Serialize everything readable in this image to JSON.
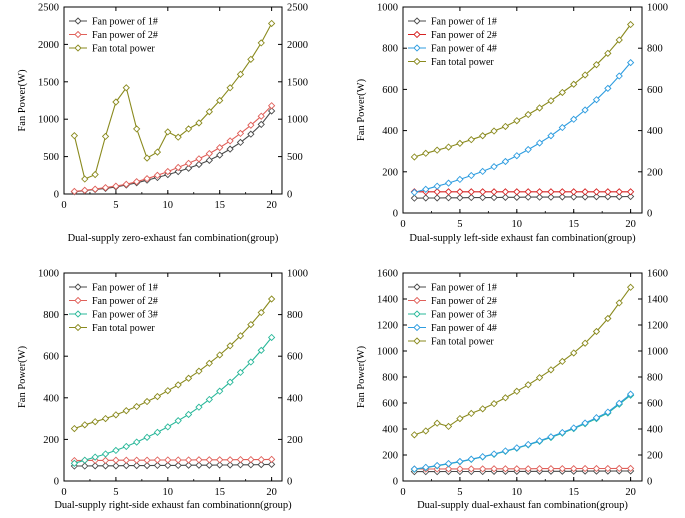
{
  "chart_data": [
    {
      "type": "line",
      "xlabel": "Dual-supply zero-exhaust fan combination(group)",
      "ylabel": "Fan Power(W)",
      "xlim": [
        0,
        21
      ],
      "ylim": [
        0,
        2500
      ],
      "xticks": [
        "0",
        "5",
        "10",
        "15",
        "20"
      ],
      "yticks": [
        "0",
        "500",
        "1000",
        "1500",
        "2000",
        "2500"
      ],
      "right_yticks": [
        "0",
        "500",
        "1000",
        "1500",
        "2000",
        "2500"
      ],
      "legend_position": "top-left",
      "x": [
        1,
        2,
        3,
        4,
        5,
        6,
        7,
        8,
        9,
        10,
        11,
        12,
        13,
        14,
        15,
        16,
        17,
        18,
        19,
        20
      ],
      "series": [
        {
          "name": "Fan power of 1#",
          "color": "#4a4a4a",
          "values": [
            30,
            45,
            60,
            75,
            95,
            120,
            150,
            185,
            220,
            260,
            300,
            345,
            395,
            450,
            520,
            600,
            690,
            800,
            930,
            1110
          ]
        },
        {
          "name": "Fan power of 2#",
          "color": "#e0605a",
          "values": [
            35,
            50,
            65,
            85,
            105,
            130,
            165,
            205,
            250,
            300,
            355,
            410,
            470,
            540,
            620,
            710,
            810,
            920,
            1040,
            1180
          ]
        },
        {
          "name": "Fan total power",
          "color": "#8a8a1e",
          "values": [
            780,
            200,
            260,
            770,
            1230,
            1420,
            870,
            480,
            560,
            830,
            760,
            870,
            950,
            1100,
            1250,
            1420,
            1600,
            1800,
            2020,
            2280
          ]
        }
      ]
    },
    {
      "type": "line",
      "xlabel": "Dual-supply left-side exhaust fan combination(group)",
      "ylabel": "Fan Power(W)",
      "xlim": [
        0,
        21
      ],
      "ylim": [
        0,
        1000
      ],
      "xticks": [
        "0",
        "5",
        "10",
        "15",
        "20"
      ],
      "yticks": [
        "0",
        "200",
        "400",
        "600",
        "800",
        "1000"
      ],
      "right_yticks": [
        "0",
        "200",
        "400",
        "600",
        "800",
        "1000"
      ],
      "legend_position": "top-left",
      "x": [
        1,
        2,
        3,
        4,
        5,
        6,
        7,
        8,
        9,
        10,
        11,
        12,
        13,
        14,
        15,
        16,
        17,
        18,
        19,
        20
      ],
      "series": [
        {
          "name": "Fan power of 1#",
          "color": "#4a4a4a",
          "values": [
            72,
            73,
            73,
            74,
            74,
            75,
            75,
            75,
            76,
            76,
            77,
            77,
            77,
            78,
            78,
            78,
            79,
            79,
            79,
            80
          ]
        },
        {
          "name": "Fan power of 2#",
          "color": "#d62222",
          "values": [
            103,
            103,
            103,
            103,
            103,
            103,
            103,
            103,
            103,
            103,
            103,
            103,
            103,
            103,
            103,
            103,
            103,
            103,
            103,
            103
          ]
        },
        {
          "name": "Fan power of 4#",
          "color": "#2f9de0",
          "values": [
            100,
            115,
            130,
            145,
            163,
            182,
            202,
            225,
            250,
            278,
            308,
            340,
            375,
            415,
            455,
            500,
            550,
            605,
            665,
            730
          ]
        },
        {
          "name": "Fan total power",
          "color": "#8a8a1e",
          "values": [
            272,
            290,
            305,
            320,
            338,
            356,
            375,
            398,
            420,
            448,
            478,
            510,
            545,
            585,
            625,
            670,
            720,
            775,
            840,
            915
          ]
        }
      ]
    },
    {
      "type": "line",
      "xlabel": "Dual-supply right-side exhaust fan combinationn(group)",
      "ylabel": "Fan Power(W)",
      "xlim": [
        0,
        21
      ],
      "ylim": [
        0,
        1000
      ],
      "xticks": [
        "0",
        "5",
        "10",
        "15",
        "20"
      ],
      "yticks": [
        "0",
        "200",
        "400",
        "600",
        "800",
        "1000"
      ],
      "right_yticks": [
        "0",
        "200",
        "400",
        "600",
        "800",
        "1000"
      ],
      "legend_position": "top-left",
      "x": [
        1,
        2,
        3,
        4,
        5,
        6,
        7,
        8,
        9,
        10,
        11,
        12,
        13,
        14,
        15,
        16,
        17,
        18,
        19,
        20
      ],
      "series": [
        {
          "name": "Fan power of 1#",
          "color": "#4a4a4a",
          "values": [
            72,
            72,
            73,
            73,
            73,
            74,
            74,
            74,
            75,
            75,
            75,
            76,
            76,
            76,
            77,
            77,
            78,
            78,
            79,
            80
          ]
        },
        {
          "name": "Fan power of 2#",
          "color": "#e0605a",
          "values": [
            98,
            99,
            99,
            99,
            100,
            100,
            100,
            100,
            101,
            101,
            101,
            101,
            102,
            102,
            102,
            102,
            103,
            103,
            103,
            104
          ]
        },
        {
          "name": "Fan power of 3#",
          "color": "#2ab89a",
          "values": [
            85,
            100,
            115,
            130,
            147,
            166,
            187,
            210,
            234,
            260,
            290,
            320,
            355,
            392,
            432,
            475,
            522,
            572,
            628,
            690
          ]
        },
        {
          "name": "Fan total power",
          "color": "#8a8a1e",
          "values": [
            252,
            270,
            285,
            300,
            318,
            338,
            358,
            382,
            406,
            434,
            462,
            494,
            528,
            566,
            606,
            650,
            698,
            752,
            810,
            875
          ]
        }
      ]
    },
    {
      "type": "line",
      "xlabel": "Dual-supply dual-exhaust fan combination(group)",
      "ylabel": "Fan Power(W)",
      "xlim": [
        0,
        21
      ],
      "ylim": [
        0,
        1600
      ],
      "xticks": [
        "0",
        "5",
        "10",
        "15",
        "20"
      ],
      "yticks": [
        "0",
        "200",
        "400",
        "600",
        "800",
        "1000",
        "1200",
        "1400",
        "1600"
      ],
      "right_yticks": [
        "0",
        "200",
        "400",
        "600",
        "800",
        "1000",
        "1200",
        "1400",
        "1600"
      ],
      "legend_position": "top-left",
      "x": [
        1,
        2,
        3,
        4,
        5,
        6,
        7,
        8,
        9,
        10,
        11,
        12,
        13,
        14,
        15,
        16,
        17,
        18,
        19,
        20
      ],
      "series": [
        {
          "name": "Fan power of 1#",
          "color": "#4a4a4a",
          "values": [
            72,
            72,
            72,
            73,
            73,
            73,
            73,
            74,
            74,
            74,
            74,
            75,
            75,
            75,
            75,
            76,
            76,
            76,
            77,
            77
          ]
        },
        {
          "name": "Fan power of 2#",
          "color": "#e0605a",
          "values": [
            92,
            92,
            92,
            93,
            93,
            93,
            93,
            94,
            94,
            94,
            94,
            95,
            95,
            95,
            95,
            96,
            96,
            96,
            97,
            97
          ]
        },
        {
          "name": "Fan power of 3#",
          "color": "#2ab89a",
          "values": [
            90,
            103,
            117,
            132,
            148,
            166,
            185,
            205,
            228,
            252,
            278,
            305,
            335,
            368,
            403,
            440,
            480,
            523,
            590,
            660
          ]
        },
        {
          "name": "Fan power of 4#",
          "color": "#2f9de0",
          "values": [
            92,
            105,
            119,
            134,
            150,
            168,
            187,
            208,
            231,
            255,
            281,
            309,
            340,
            373,
            408,
            446,
            487,
            530,
            598,
            668
          ]
        },
        {
          "name": "Fan total power",
          "color": "#8a8a1e",
          "values": [
            355,
            385,
            445,
            420,
            480,
            520,
            555,
            595,
            640,
            690,
            740,
            795,
            855,
            920,
            985,
            1060,
            1150,
            1250,
            1370,
            1490
          ]
        }
      ]
    }
  ]
}
